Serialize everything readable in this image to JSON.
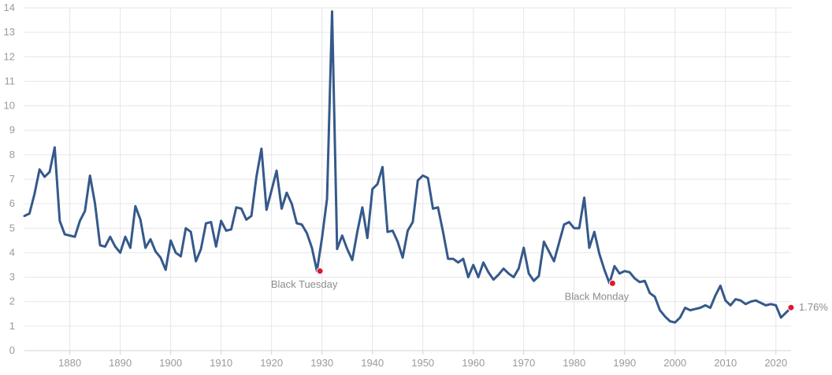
{
  "chart_data": {
    "type": "line",
    "title": "",
    "xlabel": "",
    "ylabel": "",
    "xlim": [
      1871,
      2023
    ],
    "ylim": [
      0,
      14
    ],
    "grid": true,
    "x_ticks": [
      1880,
      1890,
      1900,
      1910,
      1920,
      1930,
      1940,
      1950,
      1960,
      1970,
      1980,
      1990,
      2000,
      2010,
      2020
    ],
    "y_ticks": [
      0,
      1,
      2,
      3,
      4,
      5,
      6,
      7,
      8,
      9,
      10,
      11,
      12,
      13,
      14
    ],
    "colors": {
      "line": "#35598a",
      "marker": "#e0182d"
    },
    "series": [
      {
        "x": [
          1871,
          1872,
          1873,
          1874,
          1875,
          1876,
          1877,
          1878,
          1879,
          1880,
          1881,
          1882,
          1883,
          1884,
          1885,
          1886,
          1887,
          1888,
          1889,
          1890,
          1891,
          1892,
          1893,
          1894,
          1895,
          1896,
          1897,
          1898,
          1899,
          1900,
          1901,
          1902,
          1903,
          1904,
          1905,
          1906,
          1907,
          1908,
          1909,
          1910,
          1911,
          1912,
          1913,
          1914,
          1915,
          1916,
          1917,
          1918,
          1919,
          1920,
          1921,
          1922,
          1923,
          1924,
          1925,
          1926,
          1927,
          1928,
          1929,
          1930,
          1931,
          1932,
          1933,
          1934,
          1935,
          1936,
          1937,
          1938,
          1939,
          1940,
          1941,
          1942,
          1943,
          1944,
          1945,
          1946,
          1947,
          1948,
          1949,
          1950,
          1951,
          1952,
          1953,
          1954,
          1955,
          1956,
          1957,
          1958,
          1959,
          1960,
          1961,
          1962,
          1963,
          1964,
          1965,
          1966,
          1967,
          1968,
          1969,
          1970,
          1971,
          1972,
          1973,
          1974,
          1975,
          1976,
          1977,
          1978,
          1979,
          1980,
          1981,
          1982,
          1983,
          1984,
          1985,
          1986,
          1987,
          1988,
          1989,
          1990,
          1991,
          1992,
          1993,
          1994,
          1995,
          1996,
          1997,
          1998,
          1999,
          2000,
          2001,
          2002,
          2003,
          2004,
          2005,
          2006,
          2007,
          2008,
          2009,
          2010,
          2011,
          2012,
          2013,
          2014,
          2015,
          2016,
          2017,
          2018,
          2019,
          2020,
          2021,
          2022,
          2023
        ],
        "values": [
          5.5,
          5.6,
          6.4,
          7.4,
          7.1,
          7.3,
          8.3,
          5.3,
          4.75,
          4.7,
          4.65,
          5.3,
          5.7,
          7.15,
          6.0,
          4.3,
          4.25,
          4.65,
          4.25,
          4.0,
          4.65,
          4.2,
          5.9,
          5.35,
          4.2,
          4.55,
          4.05,
          3.8,
          3.3,
          4.5,
          4.0,
          3.85,
          5.0,
          4.85,
          3.65,
          4.15,
          5.2,
          5.25,
          4.25,
          5.3,
          4.9,
          4.95,
          5.85,
          5.8,
          5.35,
          5.5,
          7.1,
          8.25,
          5.75,
          6.55,
          7.35,
          5.8,
          6.45,
          6.0,
          5.2,
          5.15,
          4.8,
          4.2,
          3.25,
          4.6,
          6.2,
          13.85,
          4.15,
          4.7,
          4.15,
          3.7,
          4.85,
          5.85,
          4.6,
          6.6,
          6.8,
          7.5,
          4.85,
          4.9,
          4.45,
          3.8,
          4.9,
          5.25,
          6.95,
          7.15,
          7.05,
          5.8,
          5.85,
          4.85,
          3.75,
          3.75,
          3.6,
          3.75,
          3.0,
          3.5,
          3.0,
          3.6,
          3.2,
          2.9,
          3.1,
          3.35,
          3.15,
          3.0,
          3.35,
          4.2,
          3.15,
          2.85,
          3.05,
          4.45,
          4.05,
          3.65,
          4.4,
          5.15,
          5.25,
          5.0,
          5.0,
          6.25,
          4.2,
          4.85,
          3.95,
          3.3,
          2.75,
          3.45,
          3.15,
          3.25,
          3.2,
          2.95,
          2.8,
          2.85,
          2.35,
          2.2,
          1.65,
          1.4,
          1.2,
          1.15,
          1.35,
          1.75,
          1.65,
          1.7,
          1.75,
          1.85,
          1.75,
          2.25,
          2.65,
          2.05,
          1.85,
          2.1,
          2.05,
          1.9,
          2.0,
          2.05,
          1.95,
          1.85,
          1.9,
          1.85,
          1.35,
          1.55,
          1.76
        ]
      }
    ],
    "annotations": [
      {
        "label": "Black Tuesday",
        "x": 1929.6,
        "y": 3.25
      },
      {
        "label": "Black Monday",
        "x": 1987.6,
        "y": 2.75
      }
    ],
    "end_marker": {
      "label": "1.76%",
      "x": 2023,
      "y": 1.76
    }
  }
}
